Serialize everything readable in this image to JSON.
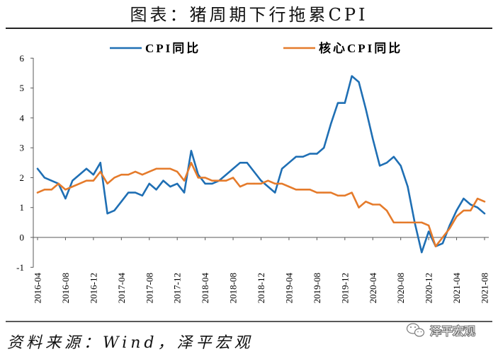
{
  "chart_data": {
    "type": "line",
    "title": "图表：猪周期下行拖累CPI",
    "legend": "top",
    "grid": false,
    "ylim": [
      -1,
      6
    ],
    "yticks": [
      -1,
      0,
      1,
      2,
      3,
      4,
      5,
      6
    ],
    "categories": [
      "2016-04",
      "2016-05",
      "2016-06",
      "2016-07",
      "2016-08",
      "2016-09",
      "2016-10",
      "2016-11",
      "2016-12",
      "2017-01",
      "2017-02",
      "2017-03",
      "2017-04",
      "2017-05",
      "2017-06",
      "2017-07",
      "2017-08",
      "2017-09",
      "2017-10",
      "2017-11",
      "2017-12",
      "2018-01",
      "2018-02",
      "2018-03",
      "2018-04",
      "2018-05",
      "2018-06",
      "2018-07",
      "2018-08",
      "2018-09",
      "2018-10",
      "2018-11",
      "2018-12",
      "2019-01",
      "2019-02",
      "2019-03",
      "2019-04",
      "2019-05",
      "2019-06",
      "2019-07",
      "2019-08",
      "2019-09",
      "2019-10",
      "2019-11",
      "2019-12",
      "2020-01",
      "2020-02",
      "2020-03",
      "2020-04",
      "2020-05",
      "2020-06",
      "2020-07",
      "2020-08",
      "2020-09",
      "2020-10",
      "2020-11",
      "2020-12",
      "2021-01",
      "2021-02",
      "2021-03",
      "2021-04",
      "2021-05",
      "2021-06",
      "2021-07",
      "2021-08"
    ],
    "series": [
      {
        "name": "CPI同比",
        "color": "#1f6fb4",
        "values": [
          2.3,
          2.0,
          1.9,
          1.8,
          1.3,
          1.9,
          2.1,
          2.3,
          2.1,
          2.5,
          0.8,
          0.9,
          1.2,
          1.5,
          1.5,
          1.4,
          1.8,
          1.6,
          1.9,
          1.7,
          1.8,
          1.5,
          2.9,
          2.1,
          1.8,
          1.8,
          1.9,
          2.1,
          2.3,
          2.5,
          2.5,
          2.2,
          1.9,
          1.7,
          1.5,
          2.3,
          2.5,
          2.7,
          2.7,
          2.8,
          2.8,
          3.0,
          3.8,
          4.5,
          4.5,
          5.4,
          5.2,
          4.3,
          3.3,
          2.4,
          2.5,
          2.7,
          2.4,
          1.7,
          0.5,
          -0.5,
          0.2,
          -0.3,
          -0.2,
          0.4,
          0.9,
          1.3,
          1.1,
          1.0,
          0.8
        ]
      },
      {
        "name": "核心CPI同比",
        "color": "#e57b2b",
        "values": [
          1.5,
          1.6,
          1.6,
          1.8,
          1.6,
          1.7,
          1.8,
          1.9,
          1.9,
          2.2,
          1.8,
          2.0,
          2.1,
          2.1,
          2.2,
          2.1,
          2.2,
          2.3,
          2.3,
          2.3,
          2.2,
          1.9,
          2.5,
          2.0,
          2.0,
          1.9,
          1.9,
          1.9,
          2.0,
          1.7,
          1.8,
          1.8,
          1.8,
          1.9,
          1.8,
          1.8,
          1.7,
          1.6,
          1.6,
          1.6,
          1.5,
          1.5,
          1.5,
          1.4,
          1.4,
          1.5,
          1.0,
          1.2,
          1.1,
          1.1,
          0.9,
          0.5,
          0.5,
          0.5,
          0.5,
          0.5,
          0.4,
          -0.3,
          0.0,
          0.3,
          0.7,
          0.9,
          0.9,
          1.3,
          1.2
        ]
      }
    ]
  },
  "source": "资料来源：Wind，泽平宏观",
  "watermark": {
    "icon": "wechat-icon",
    "text": "泽平宏观"
  }
}
